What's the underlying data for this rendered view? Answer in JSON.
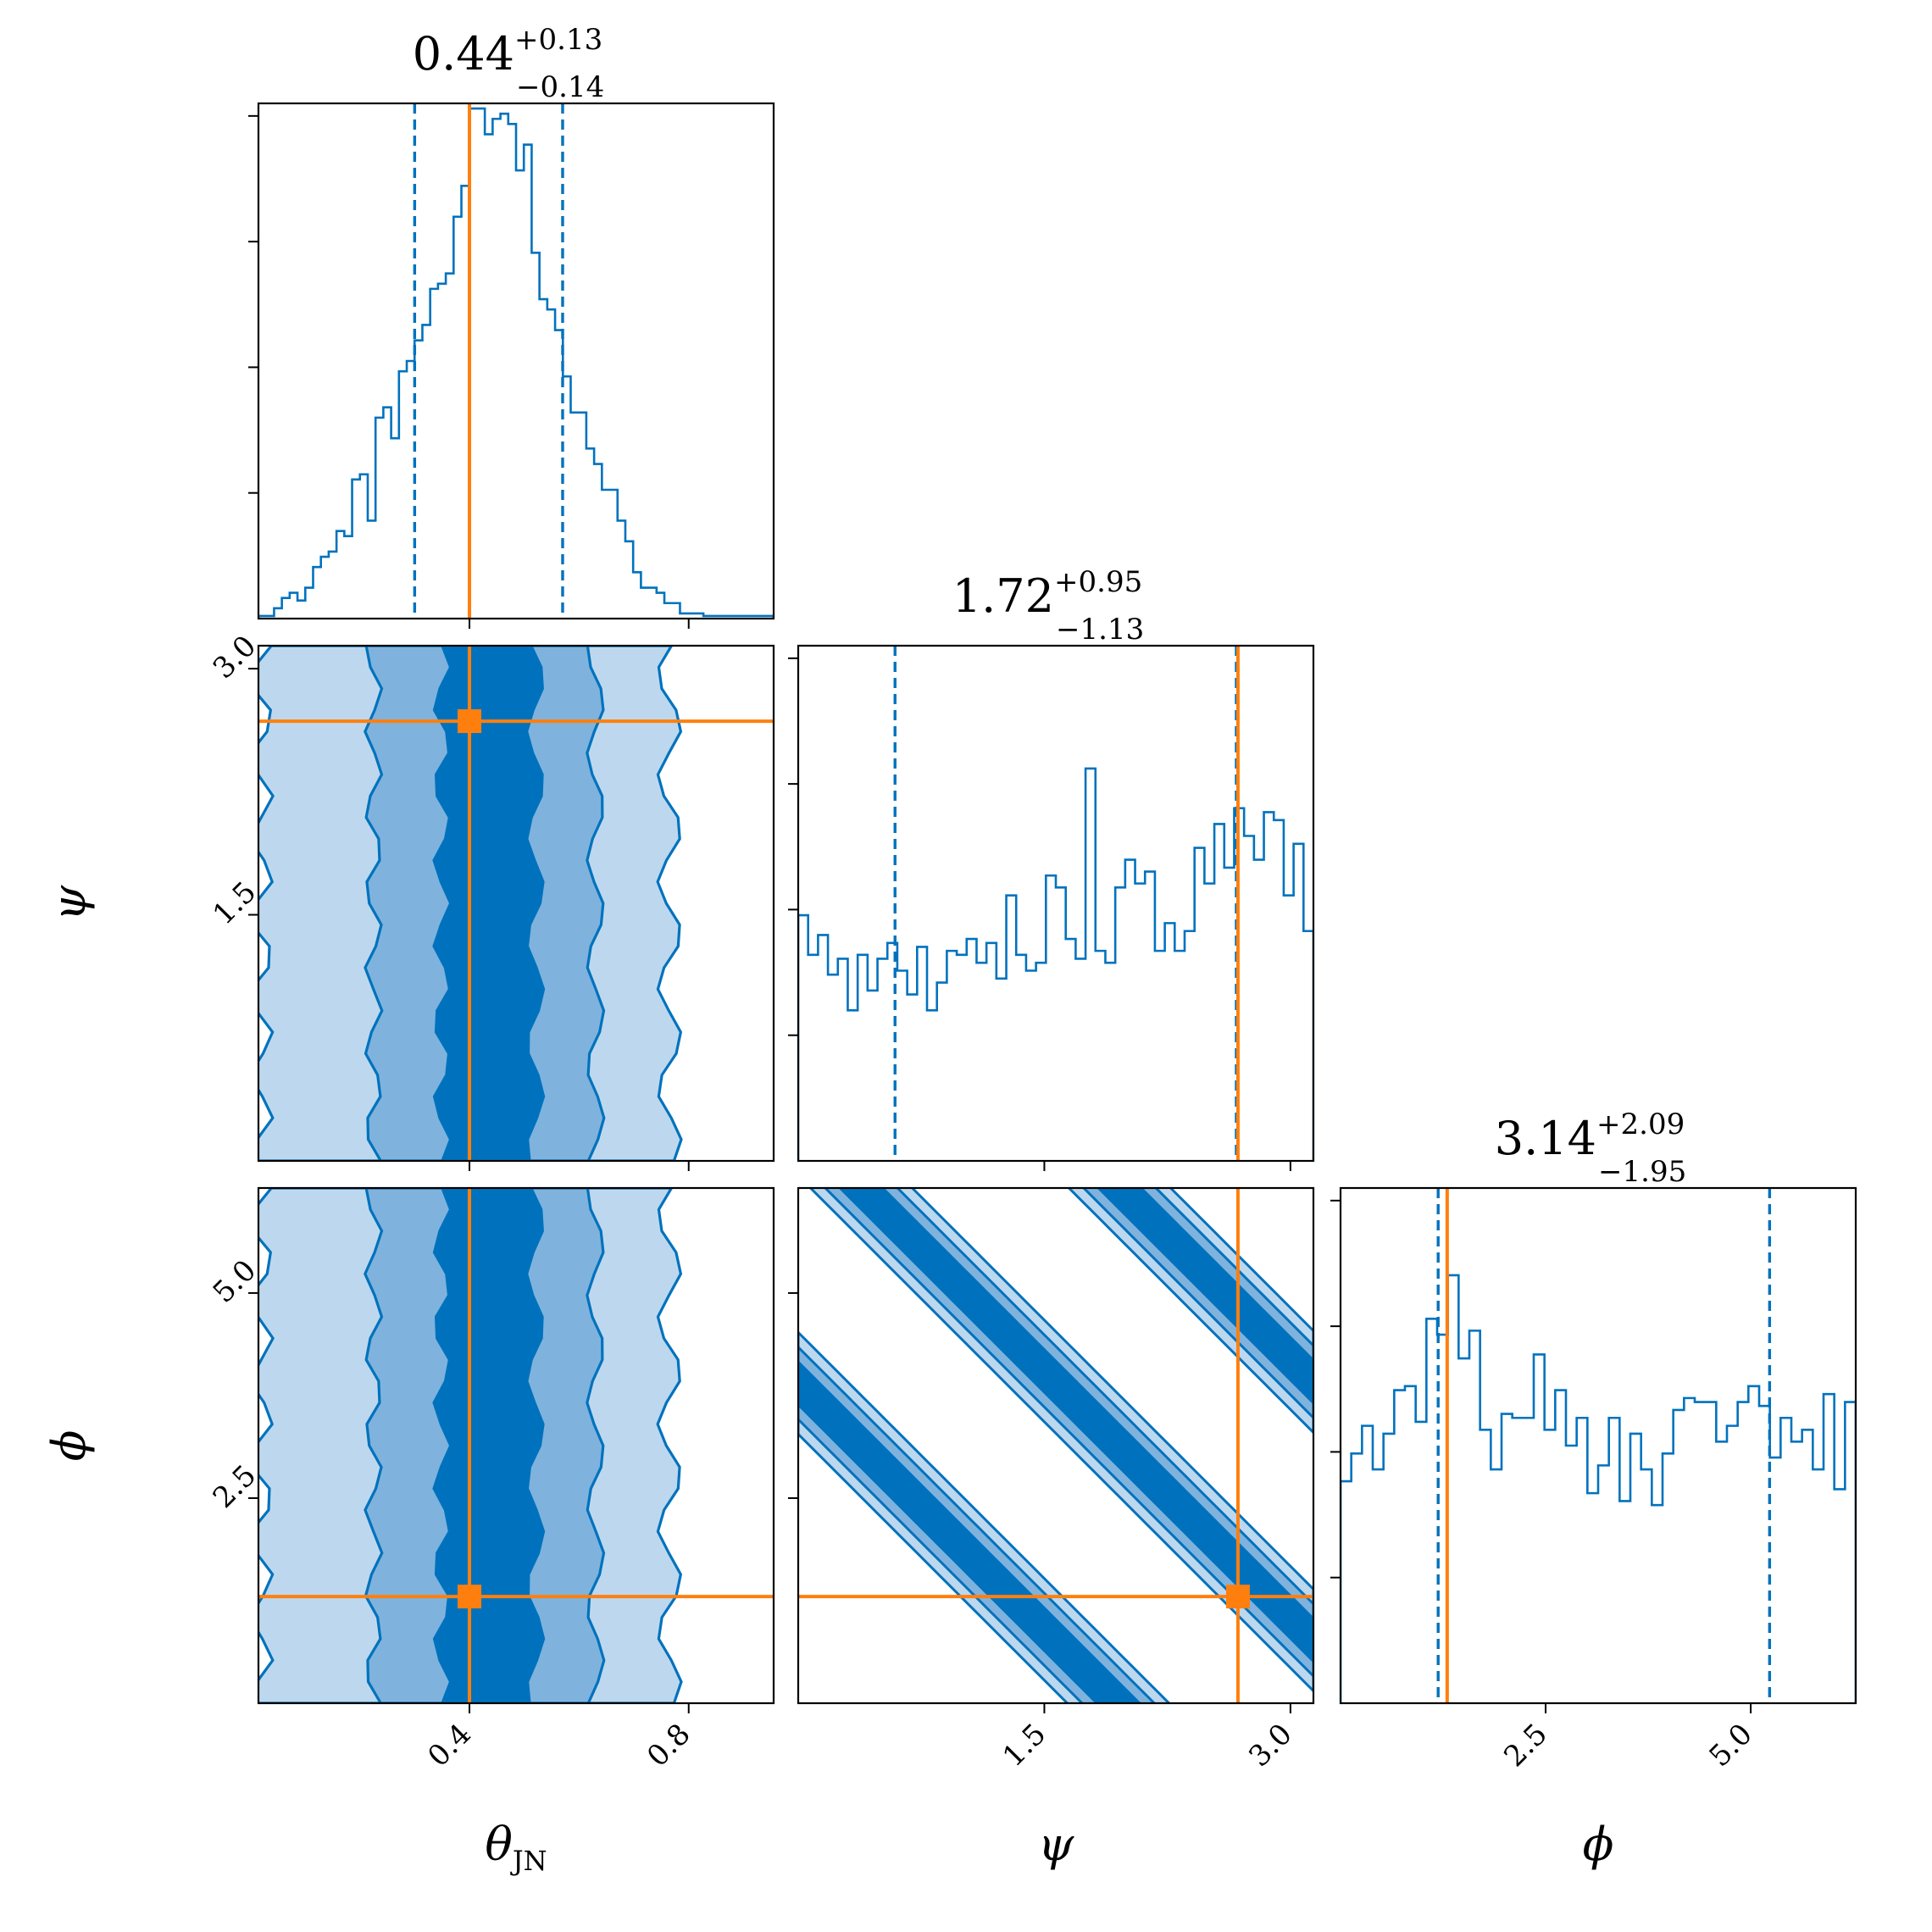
{
  "chart_data": {
    "type": "corner",
    "parameters": [
      {
        "key": "theta_jn",
        "label_main": "θ",
        "label_sub": "JN",
        "range": [
          0.015,
          0.955
        ],
        "ticks": [
          0.4,
          0.8
        ],
        "tick_labels": [
          "0.4",
          "0.8"
        ],
        "true_value": 0.4,
        "quantiles": [
          0.3,
          0.57
        ],
        "title_median": "0.44",
        "title_plus": "+0.13",
        "title_minus": "−0.14",
        "hist_peak": 1.0,
        "histogram": [
          0.005,
          0.005,
          0.02,
          0.04,
          0.05,
          0.035,
          0.06,
          0.1,
          0.12,
          0.13,
          0.17,
          0.16,
          0.27,
          0.28,
          0.19,
          0.39,
          0.41,
          0.35,
          0.48,
          0.5,
          0.54,
          0.57,
          0.64,
          0.65,
          0.67,
          0.78,
          0.84,
          0.99,
          0.99,
          0.94,
          0.97,
          0.98,
          0.96,
          0.87,
          0.92,
          0.71,
          0.62,
          0.6,
          0.56,
          0.47,
          0.4,
          0.4,
          0.33,
          0.3,
          0.25,
          0.25,
          0.19,
          0.15,
          0.09,
          0.06,
          0.06,
          0.05,
          0.03,
          0.03,
          0.01,
          0.01,
          0.01,
          0.005,
          0.005,
          0.005,
          0.005,
          0.005,
          0.005,
          0.005,
          0.005,
          0.005
        ]
      },
      {
        "key": "psi",
        "label_main": "ψ",
        "label_sub": "",
        "range": [
          0.0,
          3.14
        ],
        "ticks": [
          1.5,
          3.0
        ],
        "tick_labels": [
          "1.5",
          "3.0"
        ],
        "true_value": 2.68,
        "quantiles": [
          0.59,
          2.67
        ],
        "title_median": "1.72",
        "title_plus": "+0.95",
        "title_minus": "−1.13",
        "hist_peak": 1.3,
        "histogram": [
          0.62,
          0.52,
          0.57,
          0.47,
          0.51,
          0.38,
          0.52,
          0.43,
          0.51,
          0.55,
          0.48,
          0.42,
          0.54,
          0.38,
          0.45,
          0.53,
          0.52,
          0.56,
          0.5,
          0.55,
          0.46,
          0.67,
          0.52,
          0.48,
          0.5,
          0.72,
          0.69,
          0.56,
          0.51,
          0.99,
          0.53,
          0.5,
          0.69,
          0.76,
          0.7,
          0.73,
          0.53,
          0.6,
          0.53,
          0.58,
          0.79,
          0.7,
          0.85,
          0.74,
          0.89,
          0.82,
          0.76,
          0.88,
          0.86,
          0.67,
          0.8,
          0.58
        ]
      },
      {
        "key": "phi",
        "label_main": "ϕ",
        "label_sub": "",
        "range": [
          0.0,
          6.28
        ],
        "ticks": [
          2.5,
          5.0
        ],
        "tick_labels": [
          "2.5",
          "5.0"
        ],
        "true_value": 1.3,
        "quantiles": [
          1.19,
          5.23
        ],
        "title_median": "3.14",
        "title_plus": "+2.09",
        "title_minus": "−1.95",
        "hist_peak": 1.3,
        "histogram": [
          0.56,
          0.63,
          0.7,
          0.59,
          0.68,
          0.79,
          0.8,
          0.71,
          0.97,
          0.93,
          1.08,
          0.87,
          0.94,
          0.69,
          0.59,
          0.73,
          0.72,
          0.72,
          0.88,
          0.69,
          0.79,
          0.65,
          0.72,
          0.53,
          0.6,
          0.72,
          0.51,
          0.68,
          0.59,
          0.5,
          0.63,
          0.74,
          0.77,
          0.76,
          0.76,
          0.66,
          0.7,
          0.76,
          0.8,
          0.75,
          0.62,
          0.72,
          0.66,
          0.69,
          0.59,
          0.78,
          0.54,
          0.76
        ]
      }
    ],
    "pairs": [
      {
        "x": "theta_jn",
        "y": "psi",
        "contours": [
          {
            "level": 1,
            "color": "#bdd8ee",
            "x_ranges": [
              [
                0.02,
                0.765
              ]
            ],
            "y_ranges": [
              [
                0.0,
                3.14
              ]
            ]
          },
          {
            "level": 2,
            "color": "#7fb3dd",
            "x_ranges": [
              [
                0.225,
                0.63
              ]
            ],
            "y_ranges": [
              [
                0.0,
                3.14
              ]
            ]
          },
          {
            "level": 3,
            "color": "#0072bd",
            "x_ranges": [
              [
                0.35,
                0.52
              ]
            ],
            "y_ranges": [
              [
                0.0,
                3.14
              ]
            ]
          }
        ]
      },
      {
        "x": "theta_jn",
        "y": "phi",
        "contours": [
          {
            "level": 1,
            "color": "#bdd8ee",
            "x_ranges": [
              [
                0.02,
                0.765
              ]
            ],
            "y_ranges": [
              [
                0.0,
                6.28
              ]
            ]
          },
          {
            "level": 2,
            "color": "#7fb3dd",
            "x_ranges": [
              [
                0.225,
                0.63
              ]
            ],
            "y_ranges": [
              [
                0.0,
                6.28
              ]
            ]
          },
          {
            "level": 3,
            "color": "#0072bd",
            "x_ranges": [
              [
                0.35,
                0.52
              ]
            ],
            "y_ranges": [
              [
                0.0,
                6.28
              ]
            ]
          }
        ]
      },
      {
        "x": "psi",
        "y": "phi",
        "ridge": "phi = c - 2 psi",
        "ridge_intercepts": [
          3.9,
          7.05,
          10.2
        ],
        "widths": [
          0.62,
          0.44,
          0.26
        ],
        "colors": [
          "#bdd8ee",
          "#7fb3dd",
          "#0072bd"
        ]
      }
    ],
    "colors": {
      "hist": "#0072bd",
      "truth": "#ff7f0e",
      "quantile": "#0072bd"
    }
  }
}
